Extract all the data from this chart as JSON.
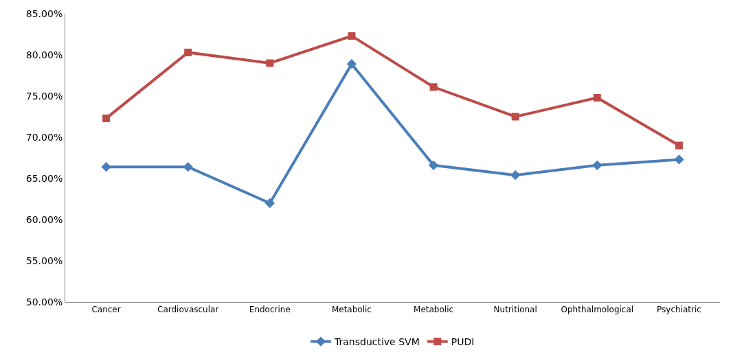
{
  "chart_data": {
    "type": "line",
    "categories": [
      "Cancer",
      "Cardiovascular",
      "Endocrine",
      "Metabolic",
      "Metabolic",
      "Nutritional",
      "Ophthalmological",
      "Psychiatric"
    ],
    "series": [
      {
        "name": "Transductive SVM",
        "color": "#4a7ebb",
        "marker": "diamond",
        "values": [
          66.4,
          66.4,
          62.0,
          78.9,
          66.6,
          65.4,
          66.6,
          67.3
        ]
      },
      {
        "name": "PUDI",
        "color": "#be4b48",
        "marker": "square",
        "values": [
          72.3,
          80.3,
          79.0,
          82.3,
          76.1,
          72.5,
          74.8,
          69.0
        ]
      }
    ],
    "ylim": [
      50,
      85
    ],
    "yticks": [
      {
        "value": 50,
        "label": "50.00%"
      },
      {
        "value": 55,
        "label": "55.00%"
      },
      {
        "value": 60,
        "label": "60.00%"
      },
      {
        "value": 65,
        "label": "65.00%"
      },
      {
        "value": 70,
        "label": "70.00%"
      },
      {
        "value": 75,
        "label": "75.00%"
      },
      {
        "value": 80,
        "label": "80.00%"
      },
      {
        "value": 85,
        "label": "85.00%"
      }
    ],
    "legend": "bottom",
    "line_style": "solid"
  }
}
